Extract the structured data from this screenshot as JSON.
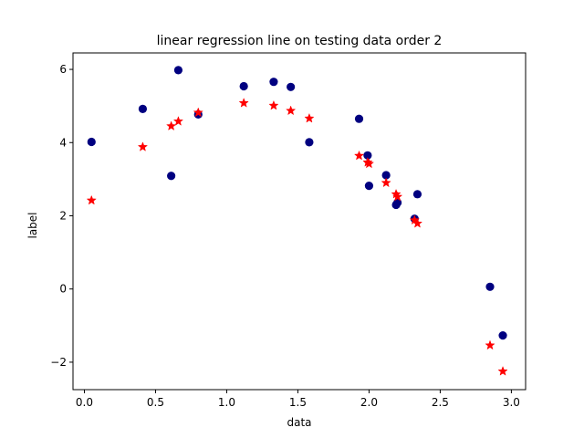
{
  "chart_data": {
    "type": "scatter",
    "title": "linear regression line on testing data order 2",
    "xlabel": "data",
    "ylabel": "label",
    "xlim": [
      -0.08,
      3.1
    ],
    "ylim": [
      -2.75,
      6.45
    ],
    "xticks": [
      0.0,
      0.5,
      1.0,
      1.5,
      2.0,
      2.5,
      3.0
    ],
    "xtick_labels": [
      "0.0",
      "0.5",
      "1.0",
      "1.5",
      "2.0",
      "2.5",
      "3.0"
    ],
    "yticks": [
      -2,
      0,
      2,
      4,
      6
    ],
    "ytick_labels": [
      "−2",
      "0",
      "2",
      "4",
      "6"
    ],
    "grid": false,
    "series": [
      {
        "marker": "circle",
        "color": "#000080",
        "x": [
          0.05,
          0.41,
          0.61,
          0.66,
          0.8,
          1.12,
          1.33,
          1.45,
          1.58,
          1.93,
          1.99,
          2.0,
          2.12,
          2.19,
          2.2,
          2.32,
          2.34,
          2.85,
          2.94
        ],
        "y": [
          4.02,
          4.92,
          3.09,
          5.98,
          4.77,
          5.54,
          5.66,
          5.52,
          4.01,
          4.65,
          3.65,
          2.82,
          3.11,
          2.3,
          2.36,
          1.92,
          2.59,
          0.06,
          -1.27
        ]
      },
      {
        "marker": "star",
        "color": "#ff0000",
        "x": [
          0.05,
          0.41,
          0.61,
          0.66,
          0.8,
          1.12,
          1.33,
          1.45,
          1.58,
          1.93,
          1.99,
          2.0,
          2.12,
          2.19,
          2.2,
          2.32,
          2.34,
          2.85,
          2.94
        ],
        "y": [
          2.42,
          3.88,
          4.45,
          4.58,
          4.82,
          5.08,
          5.01,
          4.87,
          4.66,
          3.64,
          3.46,
          3.42,
          2.9,
          2.59,
          2.52,
          1.88,
          1.79,
          -1.54,
          -2.25
        ]
      }
    ]
  }
}
